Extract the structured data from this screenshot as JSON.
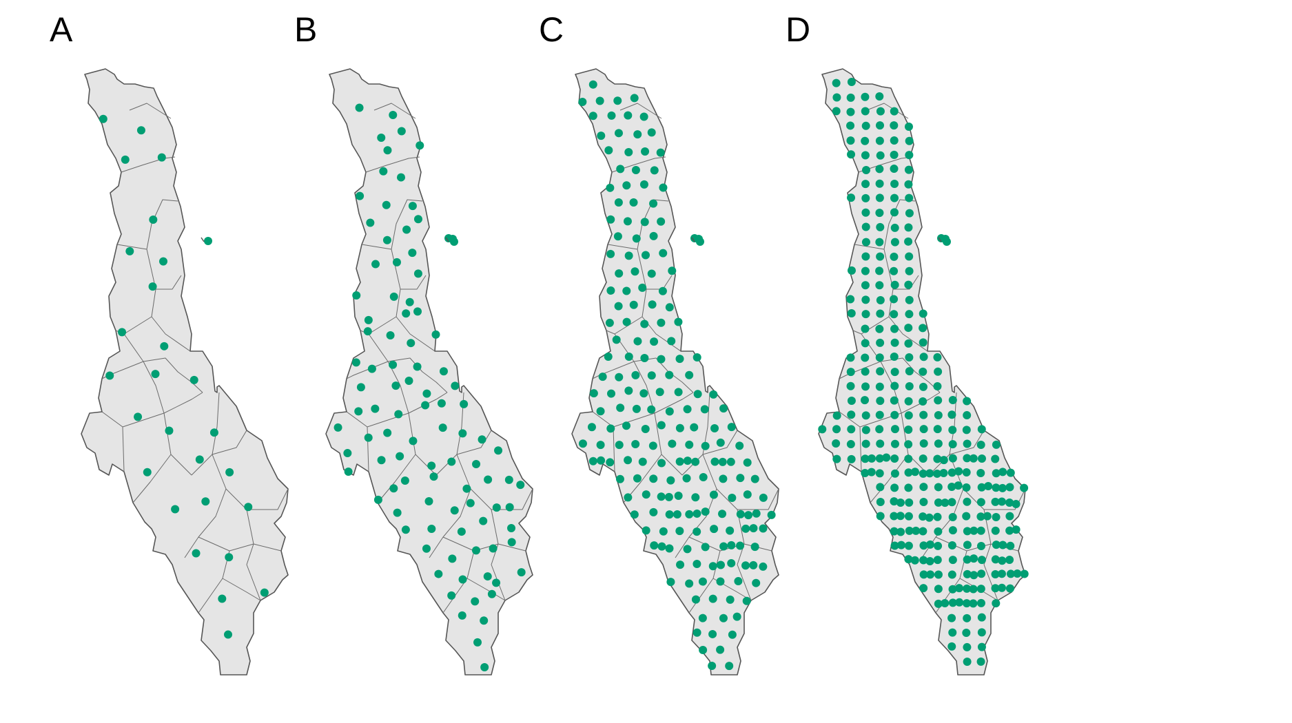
{
  "colors": {
    "land": "#e5e5e5",
    "outline": "#555555",
    "point": "#009e73"
  },
  "panels": [
    {
      "letter": "A",
      "point_density": 1
    },
    {
      "letter": "B",
      "point_density": 4
    },
    {
      "letter": "C",
      "point_density": 7
    },
    {
      "letter": "D",
      "point_density": 10
    }
  ]
}
